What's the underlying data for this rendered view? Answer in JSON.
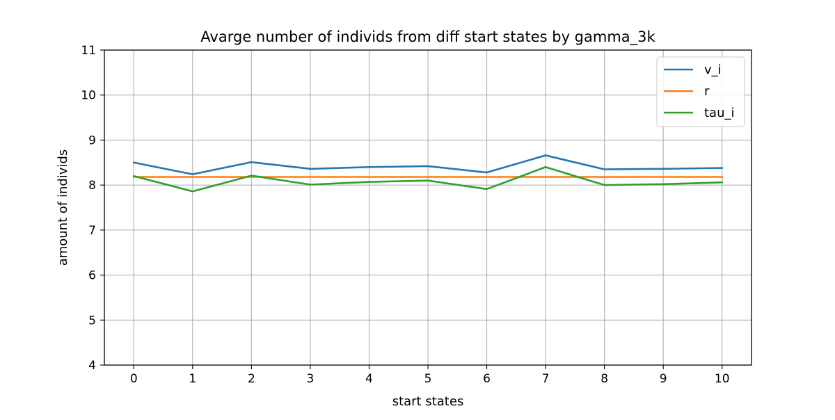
{
  "chart_data": {
    "type": "line",
    "title": "Avarge number of individs from diff start states by gamma_3k",
    "xlabel": "start states",
    "ylabel": "amount of individs",
    "x": [
      0,
      1,
      2,
      3,
      4,
      5,
      6,
      7,
      8,
      9,
      10
    ],
    "x_ticks": [
      "0",
      "1",
      "2",
      "3",
      "4",
      "5",
      "6",
      "7",
      "8",
      "9",
      "10"
    ],
    "y_ticks": [
      "4",
      "5",
      "6",
      "7",
      "8",
      "9",
      "10",
      "11"
    ],
    "xlim": [
      -0.5,
      10.5
    ],
    "ylim": [
      4,
      11
    ],
    "grid": true,
    "legend_position": "top-right",
    "series": [
      {
        "name": "v_i",
        "color": "#1f77b4",
        "values": [
          8.5,
          8.24,
          8.51,
          8.36,
          8.4,
          8.42,
          8.28,
          8.66,
          8.35,
          8.36,
          8.38
        ]
      },
      {
        "name": "r",
        "color": "#ff7f0e",
        "values": [
          8.18,
          8.18,
          8.18,
          8.18,
          8.18,
          8.18,
          8.18,
          8.18,
          8.18,
          8.18,
          8.18
        ]
      },
      {
        "name": "tau_i",
        "color": "#2ca02c",
        "values": [
          8.2,
          7.86,
          8.21,
          8.01,
          8.07,
          8.1,
          7.91,
          8.4,
          8.0,
          8.02,
          8.06
        ]
      }
    ]
  }
}
